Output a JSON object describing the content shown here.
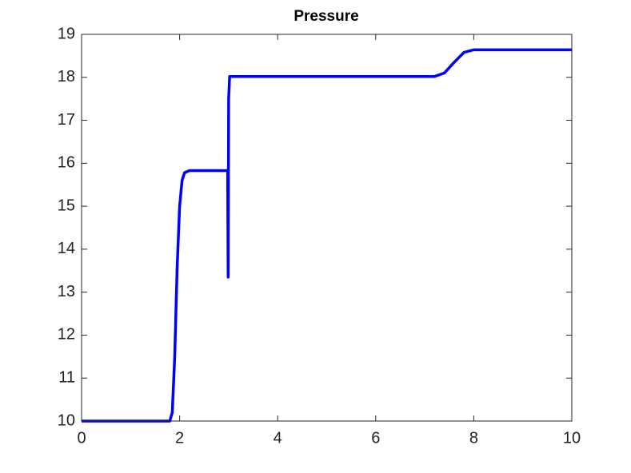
{
  "chart_data": {
    "type": "line",
    "title": "Pressure",
    "x": [
      0,
      1.8,
      1.85,
      1.9,
      1.95,
      2.0,
      2.05,
      2.1,
      2.2,
      2.98,
      2.99,
      3.0,
      3.02,
      7.2,
      7.4,
      7.6,
      7.8,
      8.0,
      10
    ],
    "values": [
      10,
      10,
      10.2,
      11.5,
      13.6,
      15.0,
      15.6,
      15.78,
      15.83,
      15.83,
      13.35,
      17.5,
      18.02,
      18.02,
      18.1,
      18.35,
      18.58,
      18.64,
      18.64
    ],
    "color": "#0000ff",
    "xlim": [
      0,
      10
    ],
    "xticks": [
      0,
      2,
      4,
      6,
      8,
      10
    ],
    "ylim": [
      10,
      19
    ],
    "yticks": [
      10,
      11,
      12,
      13,
      14,
      15,
      16,
      17,
      18,
      19
    ],
    "grid": false
  }
}
